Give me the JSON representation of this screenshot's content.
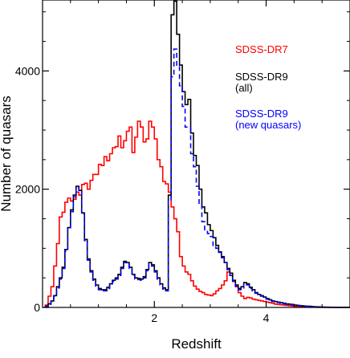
{
  "chart_data": {
    "type": "line",
    "style": "step",
    "xlabel": "Redshift",
    "ylabel": "Number of quasars",
    "xlim": [
      0,
      5.5
    ],
    "ylim": [
      0,
      5200
    ],
    "x_ticks": [
      2,
      4
    ],
    "y_ticks": [
      0,
      2000,
      4000
    ],
    "grid": false,
    "legend_position": "right",
    "bin_width": 0.05,
    "x_start": 0.05,
    "series": [
      {
        "name": "SDSS-DR7",
        "color": "#ff0000",
        "dash": "solid",
        "values": [
          40,
          190,
          350,
          700,
          1080,
          1530,
          1610,
          1780,
          1850,
          1800,
          1830,
          1950,
          1900,
          2080,
          2100,
          2000,
          2150,
          2250,
          2250,
          2420,
          2400,
          2550,
          2480,
          2600,
          2700,
          2720,
          2900,
          2700,
          2820,
          2980,
          3050,
          2620,
          2880,
          3150,
          3050,
          2800,
          2850,
          3150,
          3050,
          2850,
          2500,
          2380,
          2130,
          2090,
          1950,
          1700,
          1500,
          1280,
          860,
          700,
          600,
          560,
          450,
          360,
          310,
          270,
          250,
          220,
          210,
          200,
          230,
          280,
          320,
          380,
          450,
          600,
          540,
          440,
          350,
          250,
          190,
          150,
          170,
          160,
          140,
          130,
          120,
          110,
          100,
          90,
          80,
          70,
          55,
          50,
          45,
          40,
          35,
          30,
          25,
          20,
          18,
          15,
          12,
          10,
          8,
          6,
          4,
          3,
          2,
          1,
          1,
          0,
          0,
          0,
          0,
          0,
          0,
          0,
          0,
          0
        ]
      },
      {
        "name": "SDSS-DR9",
        "name_line2": "(all)",
        "color": "#000000",
        "dash": "solid",
        "values": [
          20,
          60,
          110,
          200,
          350,
          500,
          680,
          980,
          1350,
          1650,
          1900,
          2050,
          1980,
          1600,
          1150,
          820,
          620,
          480,
          380,
          320,
          300,
          300,
          340,
          400,
          460,
          500,
          560,
          680,
          780,
          760,
          680,
          560,
          500,
          490,
          480,
          520,
          640,
          760,
          720,
          620,
          500,
          400,
          330,
          300,
          1900,
          4950,
          5180,
          4620,
          4100,
          3650,
          3430,
          3520,
          2950,
          2570,
          2400,
          2000,
          1700,
          1600,
          1400,
          1300,
          1180,
          1050,
          940,
          860,
          760,
          660,
          580,
          460,
          380,
          320,
          350,
          420,
          400,
          340,
          300,
          250,
          220,
          200,
          175,
          150,
          130,
          110,
          100,
          90,
          80,
          70,
          60,
          55,
          50,
          40,
          35,
          30,
          25,
          22,
          20,
          16,
          12,
          10,
          8,
          6,
          5,
          4,
          3,
          2,
          2,
          1,
          1,
          1,
          0
        ]
      },
      {
        "name": "SDSS-DR9",
        "name_line2": "(new quasars)",
        "color": "#0000ff",
        "dash": "dashed",
        "values": [
          15,
          50,
          100,
          190,
          330,
          480,
          660,
          950,
          1320,
          1620,
          1870,
          2030,
          1960,
          1580,
          1130,
          800,
          600,
          460,
          360,
          300,
          280,
          280,
          320,
          380,
          440,
          480,
          540,
          660,
          760,
          740,
          660,
          540,
          480,
          470,
          460,
          500,
          620,
          740,
          700,
          600,
          480,
          380,
          310,
          280,
          1800,
          3900,
          4370,
          4100,
          3750,
          3400,
          3050,
          3050,
          2600,
          2380,
          2050,
          1750,
          1450,
          1300,
          1250,
          1200,
          1050,
          1000,
          930,
          840,
          760,
          640,
          540,
          440,
          360,
          300,
          330,
          400,
          380,
          320,
          280,
          240,
          210,
          190,
          165,
          140,
          120,
          100,
          92,
          82,
          72,
          62,
          55,
          50,
          45,
          38,
          32,
          27,
          22,
          20,
          18,
          14,
          11,
          9,
          7,
          5,
          4,
          3,
          2,
          2,
          1,
          1,
          1,
          0
        ]
      }
    ]
  }
}
